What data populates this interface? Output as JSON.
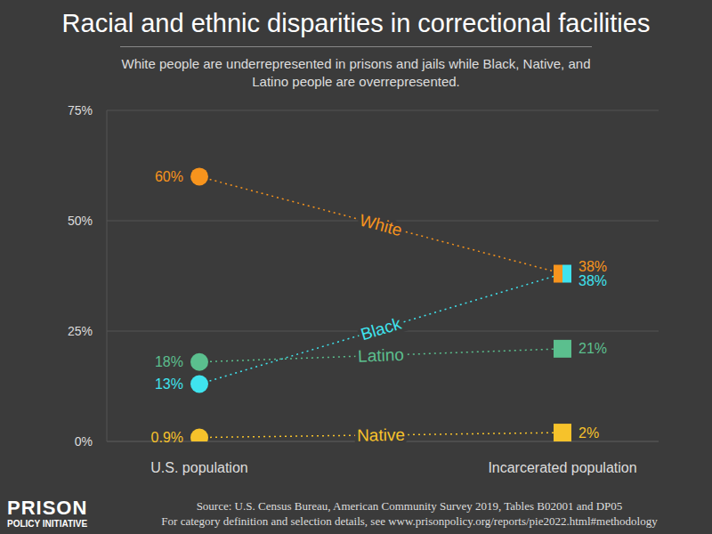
{
  "chart_data": {
    "type": "line",
    "title": "Racial and ethnic disparities in correctional facilities",
    "subtitle": "White people are underrepresented in prisons and jails while Black, Native, and Latino people are overrepresented.",
    "categories": [
      "U.S. population",
      "Incarcerated population"
    ],
    "series": [
      {
        "name": "White",
        "color": "#f7941d",
        "values": [
          60,
          38
        ],
        "value_labels": [
          "60%",
          "38%"
        ]
      },
      {
        "name": "Black",
        "color": "#3fe3ee",
        "values": [
          13,
          38
        ],
        "value_labels": [
          "13%",
          "38%"
        ]
      },
      {
        "name": "Latino",
        "color": "#5bbf8e",
        "values": [
          18,
          21
        ],
        "value_labels": [
          "18%",
          "21%"
        ]
      },
      {
        "name": "Native",
        "color": "#f6c22b",
        "values": [
          0.9,
          2
        ],
        "value_labels": [
          "0.9%",
          "2%"
        ]
      }
    ],
    "ylim": [
      0,
      75
    ],
    "yticks": [
      {
        "value": 0,
        "label": "0%"
      },
      {
        "value": 25,
        "label": "25%"
      },
      {
        "value": 50,
        "label": "50%"
      },
      {
        "value": 75,
        "label": "75%"
      }
    ],
    "grid": true,
    "data_labels": true,
    "source": [
      "Source: U.S. Census Bureau, American Community Survey 2019, Tables B02001 and DP05",
      "For category definition and selection details, see www.prisonpolicy.org/reports/pie2022.html#methodology"
    ],
    "logo": [
      "PRISON",
      "POLICY INITIATIVE"
    ]
  }
}
